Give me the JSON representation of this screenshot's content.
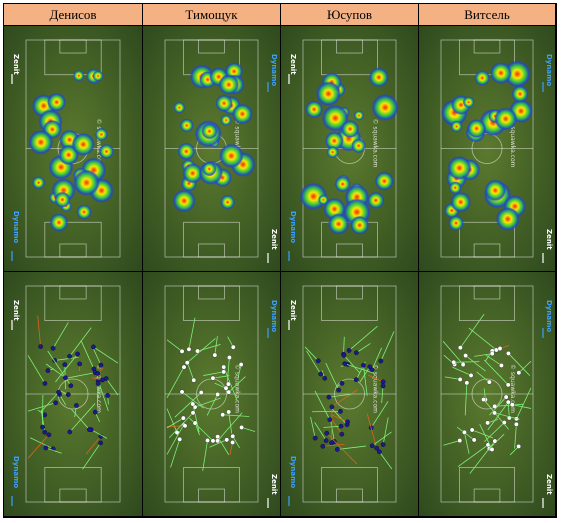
{
  "columns": [
    "Денисов",
    "Тимощук",
    "Юсупов",
    "Витсель"
  ],
  "labels": {
    "zenit": "Zenit",
    "dynamo": "Dynamo",
    "watermark": "© squawka.com"
  },
  "colors": {
    "header_bg": "#f4b183",
    "pitch_dark": "#2f4a1e",
    "pitch_light": "#5b7a2e",
    "pass_ok": "#7ef07a",
    "pass_fail": "#e0621c",
    "player_dot_blue": "#1a1a8c",
    "player_dot_white": "#ffffff"
  },
  "icons": {
    "arrow_left": "arrow-left-icon",
    "arrow_right": "arrow-right-icon"
  }
}
